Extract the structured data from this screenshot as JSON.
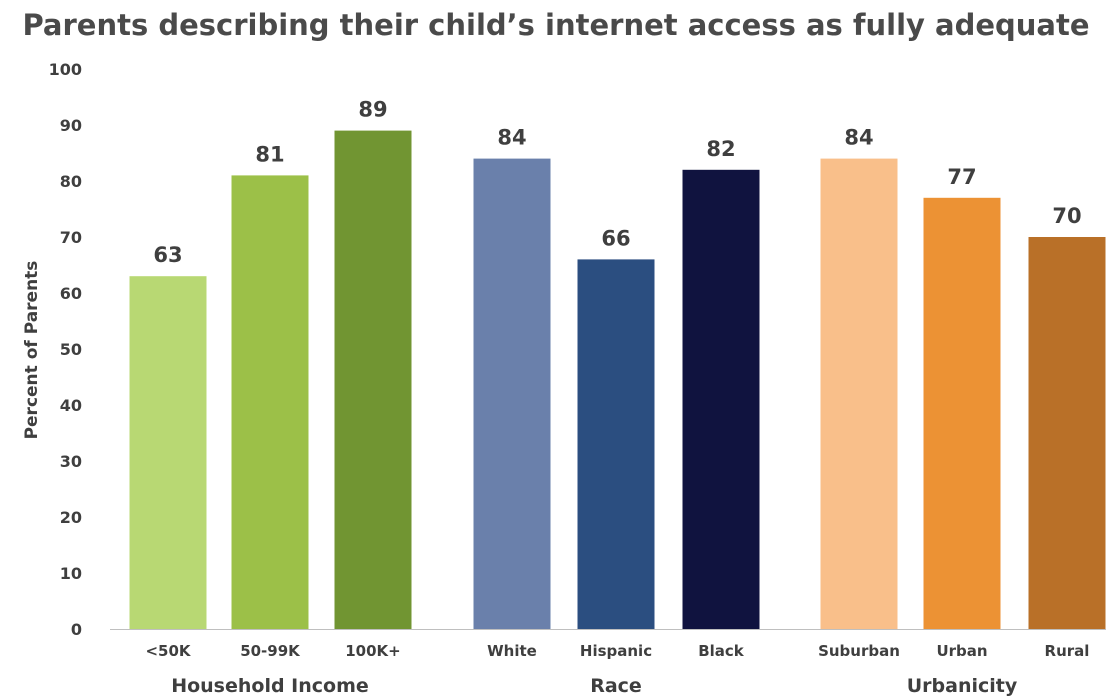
{
  "chart_data": {
    "type": "bar",
    "title": "Parents describing their child’s internet access as fully adequate",
    "ylabel": "Percent of Parents",
    "xlabel": "",
    "ylim": [
      0,
      100
    ],
    "yticks": [
      0,
      10,
      20,
      30,
      40,
      50,
      60,
      70,
      80,
      90,
      100
    ],
    "grid": false,
    "groups": [
      {
        "name": "Household Income",
        "categories": [
          "<50K",
          "50-99K",
          "100K+"
        ],
        "values": [
          63,
          81,
          89
        ],
        "colors": [
          "#b8d873",
          "#9cc048",
          "#719532"
        ]
      },
      {
        "name": "Race",
        "categories": [
          "White",
          "Hispanic",
          "Black"
        ],
        "values": [
          84,
          66,
          82
        ],
        "colors": [
          "#6a80ab",
          "#2b4e80",
          "#10133f"
        ]
      },
      {
        "name": "Urbanicity",
        "categories": [
          "Suburban",
          "Urban",
          "Rural"
        ],
        "values": [
          84,
          77,
          70
        ],
        "colors": [
          "#f9bf8a",
          "#ec9234",
          "#b97028"
        ]
      }
    ]
  }
}
